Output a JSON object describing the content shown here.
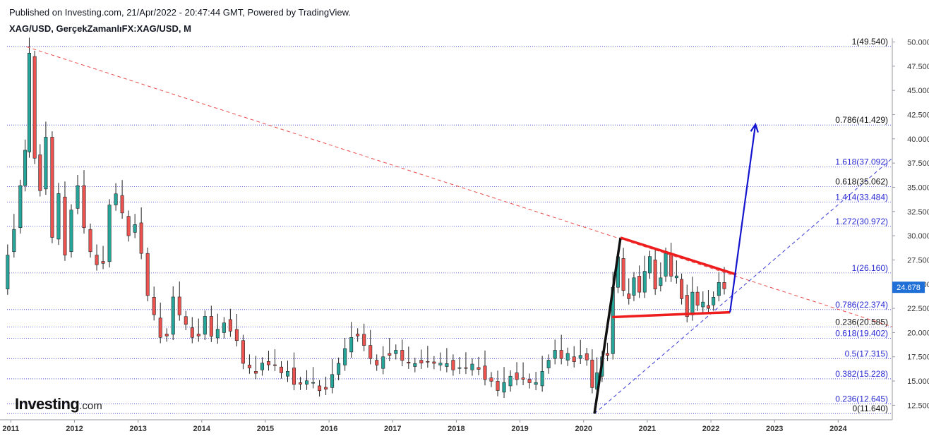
{
  "header": {
    "published": "Published on Investing.com, 21/Apr/2022 - 20:47:44 GMT, Powered by TradingView.",
    "symbol": "XAG/USD, GerçekZamanlıFX:XAG/USD, M"
  },
  "logo": {
    "brand": "Investing",
    "suffix": ".com"
  },
  "colors": {
    "up": "#26a69a",
    "down": "#ef5350",
    "grid": "#2b2bd9",
    "fib_black": "#111111",
    "fib_blue": "#2a2ad2",
    "trend": "#e84a4a",
    "triangle": "#ee1c1c",
    "arrow": "#1515d0",
    "price_tag": "#1f6fd6"
  },
  "chart_data": {
    "type": "candlestick",
    "title": "XAG/USD, GerçekZamanlıFX:XAG/USD, M",
    "xlim": [
      2010.83,
      2024.85
    ],
    "ylim": [
      11.0,
      50.4
    ],
    "y_ticks": [
      "12.500",
      "15.000",
      "17.500",
      "20.000",
      "22.500",
      "25.000",
      "27.500",
      "30.000",
      "32.500",
      "35.000",
      "37.500",
      "40.000",
      "42.500",
      "45.000",
      "47.500",
      "50.000"
    ],
    "x_ticks": [
      "2011",
      "2012",
      "2013",
      "2014",
      "2015",
      "2016",
      "2017",
      "2018",
      "2019",
      "2020",
      "2021",
      "2022",
      "2023",
      "2024"
    ],
    "last_price": "24.678",
    "price_path": [
      [
        2010.9,
        24.5
      ],
      [
        2011.0,
        28
      ],
      [
        2011.1,
        31
      ],
      [
        2011.2,
        35
      ],
      [
        2011.25,
        39
      ],
      [
        2011.33,
        48.5
      ],
      [
        2011.42,
        38
      ],
      [
        2011.5,
        35
      ],
      [
        2011.6,
        40
      ],
      [
        2011.7,
        30
      ],
      [
        2011.8,
        34
      ],
      [
        2011.9,
        28
      ],
      [
        2012.0,
        33
      ],
      [
        2012.1,
        35
      ],
      [
        2012.2,
        31
      ],
      [
        2012.3,
        28
      ],
      [
        2012.4,
        27
      ],
      [
        2012.5,
        27.5
      ],
      [
        2012.6,
        33
      ],
      [
        2012.7,
        34.5
      ],
      [
        2012.8,
        32
      ],
      [
        2012.9,
        30
      ],
      [
        2013.0,
        31.5
      ],
      [
        2013.1,
        28
      ],
      [
        2013.2,
        24
      ],
      [
        2013.3,
        21.5
      ],
      [
        2013.4,
        19.5
      ],
      [
        2013.5,
        20
      ],
      [
        2013.6,
        23.5
      ],
      [
        2013.7,
        22
      ],
      [
        2013.8,
        20.5
      ],
      [
        2013.9,
        19.5
      ],
      [
        2014.0,
        20
      ],
      [
        2014.1,
        21.5
      ],
      [
        2014.2,
        19.8
      ],
      [
        2014.3,
        20
      ],
      [
        2014.4,
        21
      ],
      [
        2014.5,
        20.5
      ],
      [
        2014.6,
        19
      ],
      [
        2014.7,
        17
      ],
      [
        2014.8,
        16
      ],
      [
        2014.9,
        15.8
      ],
      [
        2015.0,
        17.2
      ],
      [
        2015.1,
        16.5
      ],
      [
        2015.2,
        16.8
      ],
      [
        2015.3,
        15.5
      ],
      [
        2015.4,
        16
      ],
      [
        2015.5,
        15
      ],
      [
        2015.6,
        14.5
      ],
      [
        2015.7,
        15.2
      ],
      [
        2015.8,
        14.5
      ],
      [
        2015.9,
        14
      ],
      [
        2016.0,
        14.5
      ],
      [
        2016.1,
        15.5
      ],
      [
        2016.2,
        17
      ],
      [
        2016.3,
        18
      ],
      [
        2016.4,
        19.5
      ],
      [
        2016.5,
        20
      ],
      [
        2016.6,
        18.5
      ],
      [
        2016.7,
        17.5
      ],
      [
        2016.8,
        16.3
      ],
      [
        2016.9,
        17.5
      ],
      [
        2017.0,
        18
      ],
      [
        2017.1,
        18
      ],
      [
        2017.2,
        17.3
      ],
      [
        2017.3,
        16.5
      ],
      [
        2017.4,
        16.8
      ],
      [
        2017.5,
        17.2
      ],
      [
        2017.6,
        16.8
      ],
      [
        2017.7,
        17
      ],
      [
        2017.8,
        16.5
      ],
      [
        2017.9,
        16.8
      ],
      [
        2018.0,
        16.5
      ],
      [
        2018.1,
        16.2
      ],
      [
        2018.2,
        16.5
      ],
      [
        2018.3,
        16.4
      ],
      [
        2018.4,
        16.2
      ],
      [
        2018.5,
        15.5
      ],
      [
        2018.6,
        14.8
      ],
      [
        2018.7,
        14.2
      ],
      [
        2018.8,
        14.5
      ],
      [
        2018.9,
        15.5
      ],
      [
        2019.0,
        15.5
      ],
      [
        2019.1,
        15
      ],
      [
        2019.2,
        15
      ],
      [
        2019.3,
        14.5
      ],
      [
        2019.4,
        16
      ],
      [
        2019.5,
        17.5
      ],
      [
        2019.6,
        18
      ],
      [
        2019.7,
        17.5
      ],
      [
        2019.8,
        17.5
      ],
      [
        2019.9,
        17
      ],
      [
        2020.0,
        18
      ],
      [
        2020.1,
        17
      ],
      [
        2020.17,
        14.5
      ],
      [
        2020.25,
        15.5
      ],
      [
        2020.33,
        17.5
      ],
      [
        2020.42,
        18
      ],
      [
        2020.5,
        24.5
      ],
      [
        2020.58,
        28
      ],
      [
        2020.67,
        24
      ],
      [
        2020.75,
        23.5
      ],
      [
        2020.83,
        26
      ],
      [
        2020.92,
        24
      ],
      [
        2021.0,
        26.5
      ],
      [
        2021.08,
        27.5
      ],
      [
        2021.17,
        24.5
      ],
      [
        2021.25,
        26
      ],
      [
        2021.33,
        28
      ],
      [
        2021.42,
        26
      ],
      [
        2021.5,
        25.5
      ],
      [
        2021.58,
        23.5
      ],
      [
        2021.67,
        22
      ],
      [
        2021.75,
        24
      ],
      [
        2021.83,
        23
      ],
      [
        2021.92,
        22.8
      ],
      [
        2022.0,
        22.5
      ],
      [
        2022.08,
        24
      ],
      [
        2022.17,
        25
      ],
      [
        2022.25,
        24.7
      ]
    ],
    "fib_levels_black": [
      {
        "label": "1(49.540)",
        "price": 49.54
      },
      {
        "label": "0.786(41.429)",
        "price": 41.429
      },
      {
        "label": "0.618(35.062)",
        "price": 35.062
      },
      {
        "label": "0.236(20.585)",
        "price": 20.585
      },
      {
        "label": "0(11.640)",
        "price": 11.64
      }
    ],
    "fib_levels_blue": [
      {
        "label": "1.618(37.092)",
        "price": 37.092
      },
      {
        "label": "1.414(33.484)",
        "price": 33.484
      },
      {
        "label": "1.272(30.972)",
        "price": 30.972
      },
      {
        "label": "1(26.160)",
        "price": 26.16
      },
      {
        "label": "0.786(22.374)",
        "price": 22.374
      },
      {
        "label": "0.618(19.402)",
        "price": 19.402
      },
      {
        "label": "0.5(17.315)",
        "price": 17.315
      },
      {
        "label": "0.382(15.228)",
        "price": 15.228
      },
      {
        "label": "0.236(12.645)",
        "price": 12.645
      }
    ],
    "drawings": {
      "trendline_dashed_red": [
        [
          2011.25,
          49.5
        ],
        [
          2024.85,
          20.6
        ]
      ],
      "trendline_dashed_blue": [
        [
          2020.17,
          11.64
        ],
        [
          2024.85,
          38.0
        ]
      ],
      "impulse_black": [
        [
          2020.17,
          11.64
        ],
        [
          2020.58,
          29.8
        ]
      ],
      "triangle_upper": [
        [
          2020.58,
          29.8
        ],
        [
          2022.4,
          26.0
        ]
      ],
      "triangle_lower": [
        [
          2020.45,
          21.6
        ],
        [
          2022.3,
          22.1
        ]
      ],
      "projection_arrow": [
        [
          2022.3,
          22.1
        ],
        [
          2022.7,
          41.5
        ]
      ]
    }
  }
}
